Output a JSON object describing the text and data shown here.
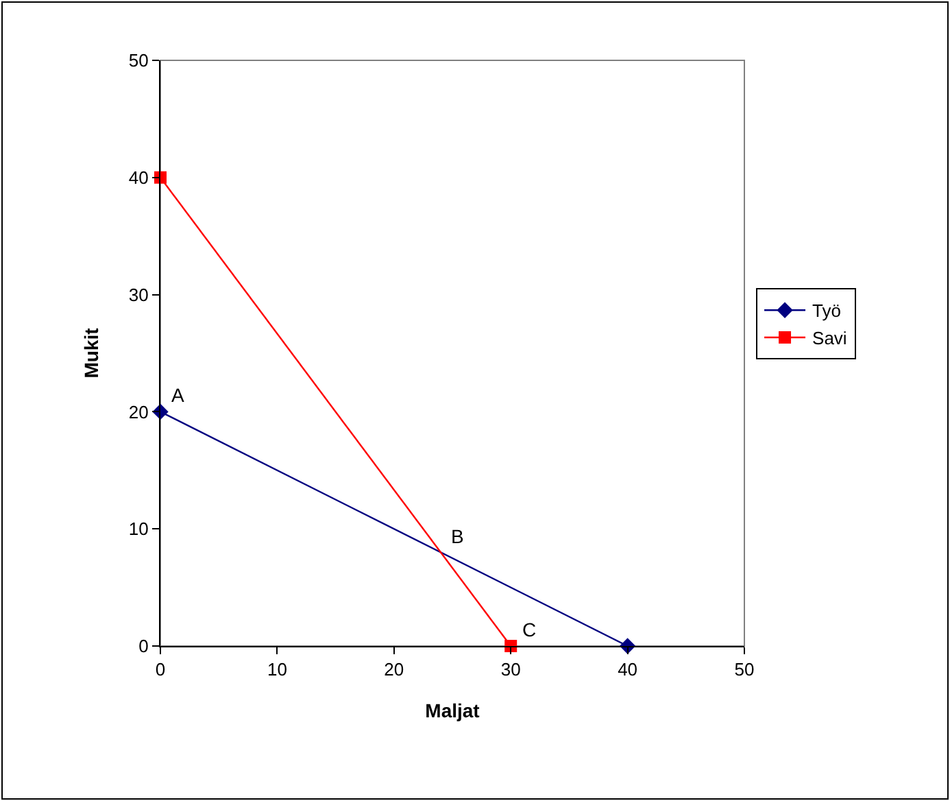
{
  "chart_data": {
    "type": "line",
    "xlabel": "Maljat",
    "ylabel": "Mukit",
    "xlim": [
      0,
      50
    ],
    "xticks": [
      0,
      10,
      20,
      30,
      40,
      50
    ],
    "ylim": [
      0,
      50
    ],
    "yticks": [
      0,
      10,
      20,
      30,
      40,
      50
    ],
    "grid": false,
    "legend": "right",
    "line_style": "solid",
    "series": [
      {
        "name": "Työ",
        "color": "#000080",
        "marker": "diamond",
        "x": [
          0,
          40
        ],
        "values": [
          20,
          0
        ]
      },
      {
        "name": "Savi",
        "color": "#ff0000",
        "marker": "square",
        "x": [
          0,
          30
        ],
        "values": [
          40,
          0
        ]
      }
    ],
    "annotations": [
      {
        "text": "A",
        "x": 0,
        "y": 20
      },
      {
        "text": "B",
        "x": 24,
        "y": 8
      },
      {
        "text": "C",
        "x": 30,
        "y": 0
      }
    ]
  }
}
